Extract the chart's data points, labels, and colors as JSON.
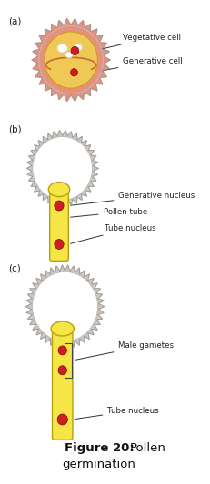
{
  "bg_color": "#ffffff",
  "pollen_a_outer": "#e8907a",
  "pollen_a_inner": "#f0c855",
  "pollen_bc_spike_fill": "#d0c8c0",
  "pollen_bc_spike_edge": "#999999",
  "pollen_bc_inner_fill": "#ffffff",
  "pollen_bc_inner_edge": "#bbbbbb",
  "tube_fill": "#f5e545",
  "tube_edge": "#b8a010",
  "nucleus_red": "#cc2020",
  "label_color": "#222222",
  "panel_labels": [
    "(a)",
    "(b)",
    "(c)"
  ],
  "labels_a": [
    "Vegetative cell",
    "Generative cell"
  ],
  "labels_b": [
    "Generative nucleus",
    "Pollen tube",
    "Tube nucleus"
  ],
  "labels_c": [
    "Male gametes",
    "Tube nucleus"
  ],
  "caption_bold": "Figure 20:",
  "caption_normal": " Pollen\ngermination"
}
